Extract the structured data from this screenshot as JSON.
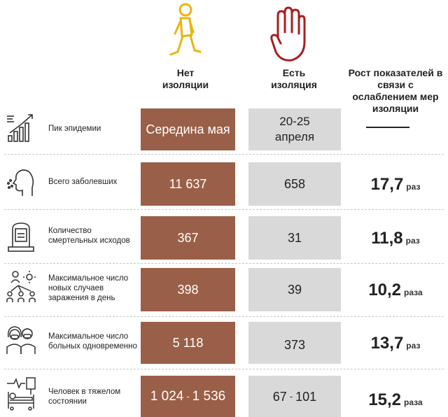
{
  "columns": {
    "no_isolation": "Нет изоляции",
    "with_isolation": "Есть изоляция",
    "growth": "Рост показателей в связи с ослаблением мер изоляции"
  },
  "colors": {
    "no_isolation_cell": "#9a5f48",
    "with_isolation_cell": "#d9d9d9",
    "walker_icon": "#e8b60c",
    "hand_icon": "#a81f1f"
  },
  "rows": [
    {
      "icon": "growth-chart-icon",
      "label": "Пик эпидемии",
      "no_isolation": "Середина мая",
      "with_isolation": "20-25 апреля",
      "growth_value": "—",
      "growth_unit": ""
    },
    {
      "icon": "coughing-person-icon",
      "label": "Всего заболевших",
      "no_isolation": "11 637",
      "with_isolation": "658",
      "growth_value": "17,7",
      "growth_unit": "раз"
    },
    {
      "icon": "gravestone-icon",
      "label": "Количество смертельных исходов",
      "no_isolation": "367",
      "with_isolation": "31",
      "growth_value": "11,8",
      "growth_unit": "раз"
    },
    {
      "icon": "virus-spread-icon",
      "label": "Максимальное число новых случаев заражения в день",
      "no_isolation": "398",
      "with_isolation": "39",
      "growth_value": "10,2",
      "growth_unit": "раза"
    },
    {
      "icon": "masked-people-icon",
      "label": "Максимальное число больных одновременно",
      "no_isolation": "5 118",
      "with_isolation": "373",
      "growth_value": "13,7",
      "growth_unit": "раз"
    },
    {
      "icon": "hospital-bed-icon",
      "label": "Человек в тяжелом состоянии",
      "no_isolation_from": "1 024",
      "no_isolation_sep": "-",
      "no_isolation_to": "1 536",
      "with_isolation_from": "67",
      "with_isolation_sep": "-",
      "with_isolation_to": "101",
      "growth_value": "15,2",
      "growth_unit": "раза"
    }
  ]
}
